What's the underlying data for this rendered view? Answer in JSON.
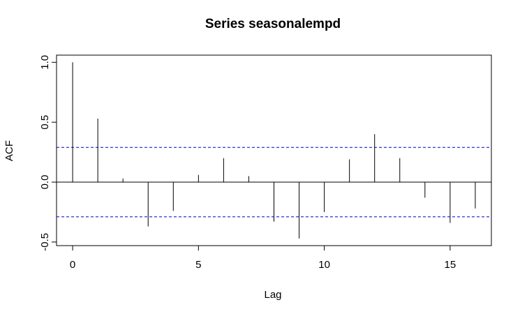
{
  "chart_data": {
    "type": "bar",
    "title": "Series  seasonalempd",
    "xlabel": "Lag",
    "ylabel": "ACF",
    "x": [
      0,
      1,
      2,
      3,
      4,
      5,
      6,
      7,
      8,
      9,
      10,
      11,
      12,
      13,
      14,
      15,
      16
    ],
    "values": [
      1.0,
      0.53,
      0.03,
      -0.37,
      -0.24,
      0.06,
      0.2,
      0.05,
      -0.33,
      -0.47,
      -0.25,
      0.19,
      0.4,
      0.2,
      -0.13,
      -0.34,
      -0.22
    ],
    "xlim": [
      -0.64,
      16.64
    ],
    "ylim": [
      -0.53,
      1.06
    ],
    "xticks": [
      "0",
      "5",
      "10",
      "15"
    ],
    "yticks": [
      "-0.5",
      "0.0",
      "0.5",
      "1.0"
    ],
    "confidence_bound": 0.29,
    "grid": false,
    "colors": {
      "bars": "#000000",
      "confidence": "#0000cc",
      "zero_line": "#000000"
    }
  }
}
